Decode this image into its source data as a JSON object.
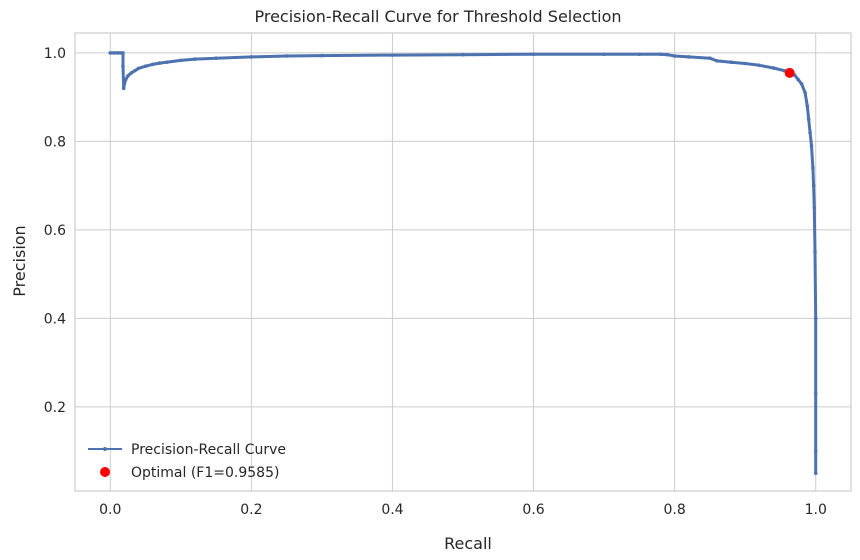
{
  "chart_data": {
    "type": "line",
    "title": "Precision-Recall Curve for Threshold Selection",
    "xlabel": "Recall",
    "ylabel": "Precision",
    "xlim": [
      -0.05,
      1.05
    ],
    "ylim": [
      0.01,
      1.045
    ],
    "xticks": [
      0.0,
      0.2,
      0.4,
      0.6,
      0.8,
      1.0
    ],
    "xtick_labels": [
      "0.0",
      "0.2",
      "0.4",
      "0.6",
      "0.8",
      "1.0"
    ],
    "yticks": [
      0.2,
      0.4,
      0.6,
      0.8,
      1.0
    ],
    "ytick_labels": [
      "0.2",
      "0.4",
      "0.6",
      "0.8",
      "1.0"
    ],
    "grid": true,
    "legend_position": "lower-left",
    "series": [
      {
        "name": "Precision-Recall Curve",
        "color": "#4c72b0",
        "marker": "dot",
        "x": [
          0.0,
          0.005,
          0.01,
          0.014,
          0.018,
          0.018,
          0.019,
          0.02,
          0.022,
          0.025,
          0.03,
          0.035,
          0.04,
          0.05,
          0.06,
          0.07,
          0.08,
          0.1,
          0.12,
          0.15,
          0.2,
          0.25,
          0.3,
          0.4,
          0.5,
          0.6,
          0.7,
          0.75,
          0.78,
          0.79,
          0.8,
          0.82,
          0.85,
          0.86,
          0.88,
          0.9,
          0.92,
          0.94,
          0.955,
          0.965,
          0.97,
          0.975,
          0.98,
          0.985,
          0.988,
          0.99,
          0.992,
          0.994,
          0.996,
          0.997,
          0.998,
          0.999,
          1.0,
          1.0,
          1.0,
          1.0
        ],
        "y": [
          1.0,
          1.0,
          1.0,
          1.0,
          1.0,
          0.97,
          0.92,
          0.93,
          0.94,
          0.948,
          0.955,
          0.96,
          0.965,
          0.97,
          0.974,
          0.977,
          0.979,
          0.983,
          0.986,
          0.988,
          0.991,
          0.993,
          0.994,
          0.995,
          0.996,
          0.997,
          0.997,
          0.997,
          0.997,
          0.996,
          0.993,
          0.991,
          0.988,
          0.982,
          0.979,
          0.976,
          0.972,
          0.966,
          0.96,
          0.955,
          0.95,
          0.94,
          0.93,
          0.91,
          0.88,
          0.85,
          0.82,
          0.79,
          0.74,
          0.7,
          0.65,
          0.55,
          0.4,
          0.23,
          0.1,
          0.05
        ]
      },
      {
        "name": "Optimal (F1=0.9585)",
        "color": "#ff0000",
        "marker": "circle",
        "x": [
          0.963
        ],
        "y": [
          0.955
        ]
      }
    ]
  }
}
